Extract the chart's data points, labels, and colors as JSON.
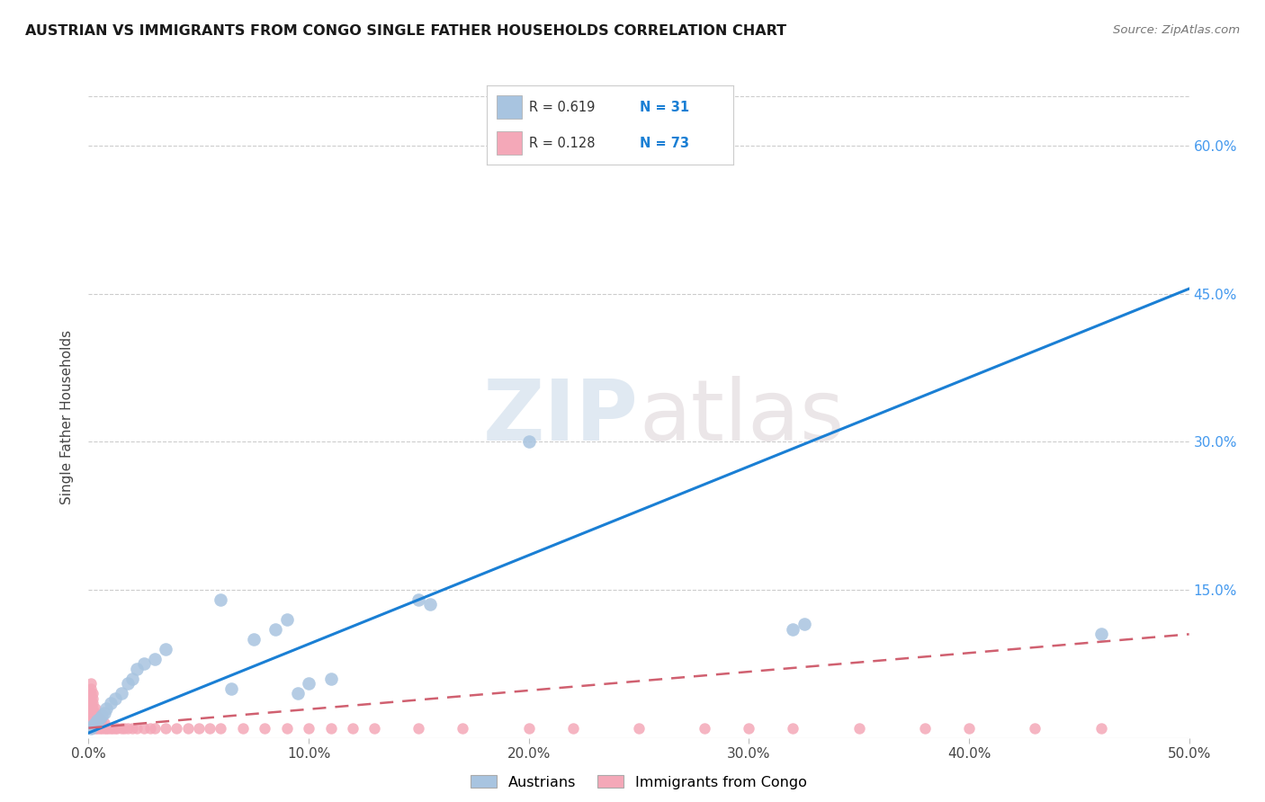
{
  "title": "AUSTRIAN VS IMMIGRANTS FROM CONGO SINGLE FATHER HOUSEHOLDS CORRELATION CHART",
  "source": "Source: ZipAtlas.com",
  "ylabel": "Single Father Households",
  "xlim": [
    0.0,
    0.5
  ],
  "ylim": [
    0.0,
    0.65
  ],
  "xtick_labels": [
    "0.0%",
    "10.0%",
    "20.0%",
    "30.0%",
    "40.0%",
    "50.0%"
  ],
  "xtick_vals": [
    0.0,
    0.1,
    0.2,
    0.3,
    0.4,
    0.5
  ],
  "ytick_labels": [
    "15.0%",
    "30.0%",
    "45.0%",
    "60.0%"
  ],
  "ytick_vals": [
    0.15,
    0.3,
    0.45,
    0.6
  ],
  "grid_color": "#cccccc",
  "background_color": "#ffffff",
  "austrians_color": "#a8c4e0",
  "congo_color": "#f4a8b8",
  "trendline_austrians_color": "#1a7fd4",
  "trendline_congo_color": "#d06070",
  "legend_label_austrians": "Austrians",
  "legend_label_congo": "Immigrants from Congo",
  "watermark_zip": "ZIP",
  "watermark_atlas": "atlas",
  "austrians_x": [
    0.001,
    0.002,
    0.003,
    0.004,
    0.005,
    0.006,
    0.007,
    0.008,
    0.01,
    0.012,
    0.015,
    0.018,
    0.02,
    0.022,
    0.025,
    0.03,
    0.035,
    0.06,
    0.065,
    0.075,
    0.085,
    0.09,
    0.15,
    0.155,
    0.2,
    0.32,
    0.325,
    0.46,
    0.095,
    0.1,
    0.11
  ],
  "austrians_y": [
    0.01,
    0.012,
    0.015,
    0.018,
    0.02,
    0.022,
    0.025,
    0.03,
    0.035,
    0.04,
    0.045,
    0.055,
    0.06,
    0.07,
    0.075,
    0.08,
    0.09,
    0.14,
    0.05,
    0.1,
    0.11,
    0.12,
    0.14,
    0.135,
    0.3,
    0.11,
    0.115,
    0.105,
    0.045,
    0.055,
    0.06
  ],
  "congo_x": [
    0.001,
    0.001,
    0.001,
    0.001,
    0.001,
    0.001,
    0.001,
    0.001,
    0.001,
    0.001,
    0.002,
    0.002,
    0.002,
    0.002,
    0.002,
    0.002,
    0.002,
    0.002,
    0.003,
    0.003,
    0.003,
    0.003,
    0.003,
    0.004,
    0.004,
    0.004,
    0.005,
    0.005,
    0.005,
    0.006,
    0.006,
    0.007,
    0.007,
    0.008,
    0.009,
    0.01,
    0.011,
    0.012,
    0.013,
    0.015,
    0.016,
    0.018,
    0.02,
    0.022,
    0.025,
    0.028,
    0.03,
    0.035,
    0.04,
    0.045,
    0.05,
    0.055,
    0.06,
    0.07,
    0.08,
    0.09,
    0.1,
    0.11,
    0.12,
    0.13,
    0.15,
    0.17,
    0.2,
    0.22,
    0.25,
    0.28,
    0.3,
    0.32,
    0.35,
    0.38,
    0.4,
    0.43,
    0.46
  ],
  "congo_y": [
    0.01,
    0.015,
    0.02,
    0.025,
    0.03,
    0.035,
    0.04,
    0.045,
    0.05,
    0.055,
    0.01,
    0.015,
    0.02,
    0.025,
    0.03,
    0.035,
    0.04,
    0.045,
    0.01,
    0.015,
    0.02,
    0.025,
    0.03,
    0.01,
    0.015,
    0.02,
    0.01,
    0.015,
    0.02,
    0.01,
    0.015,
    0.01,
    0.015,
    0.01,
    0.01,
    0.01,
    0.01,
    0.01,
    0.01,
    0.01,
    0.01,
    0.01,
    0.01,
    0.01,
    0.01,
    0.01,
    0.01,
    0.01,
    0.01,
    0.01,
    0.01,
    0.01,
    0.01,
    0.01,
    0.01,
    0.01,
    0.01,
    0.01,
    0.01,
    0.01,
    0.01,
    0.01,
    0.01,
    0.01,
    0.01,
    0.01,
    0.01,
    0.01,
    0.01,
    0.01,
    0.01,
    0.01,
    0.01
  ],
  "austrians_trend_x": [
    0.0,
    0.5
  ],
  "austrians_trend_y": [
    0.005,
    0.455
  ],
  "congo_trend_x": [
    0.0,
    0.5
  ],
  "congo_trend_y": [
    0.01,
    0.105
  ]
}
